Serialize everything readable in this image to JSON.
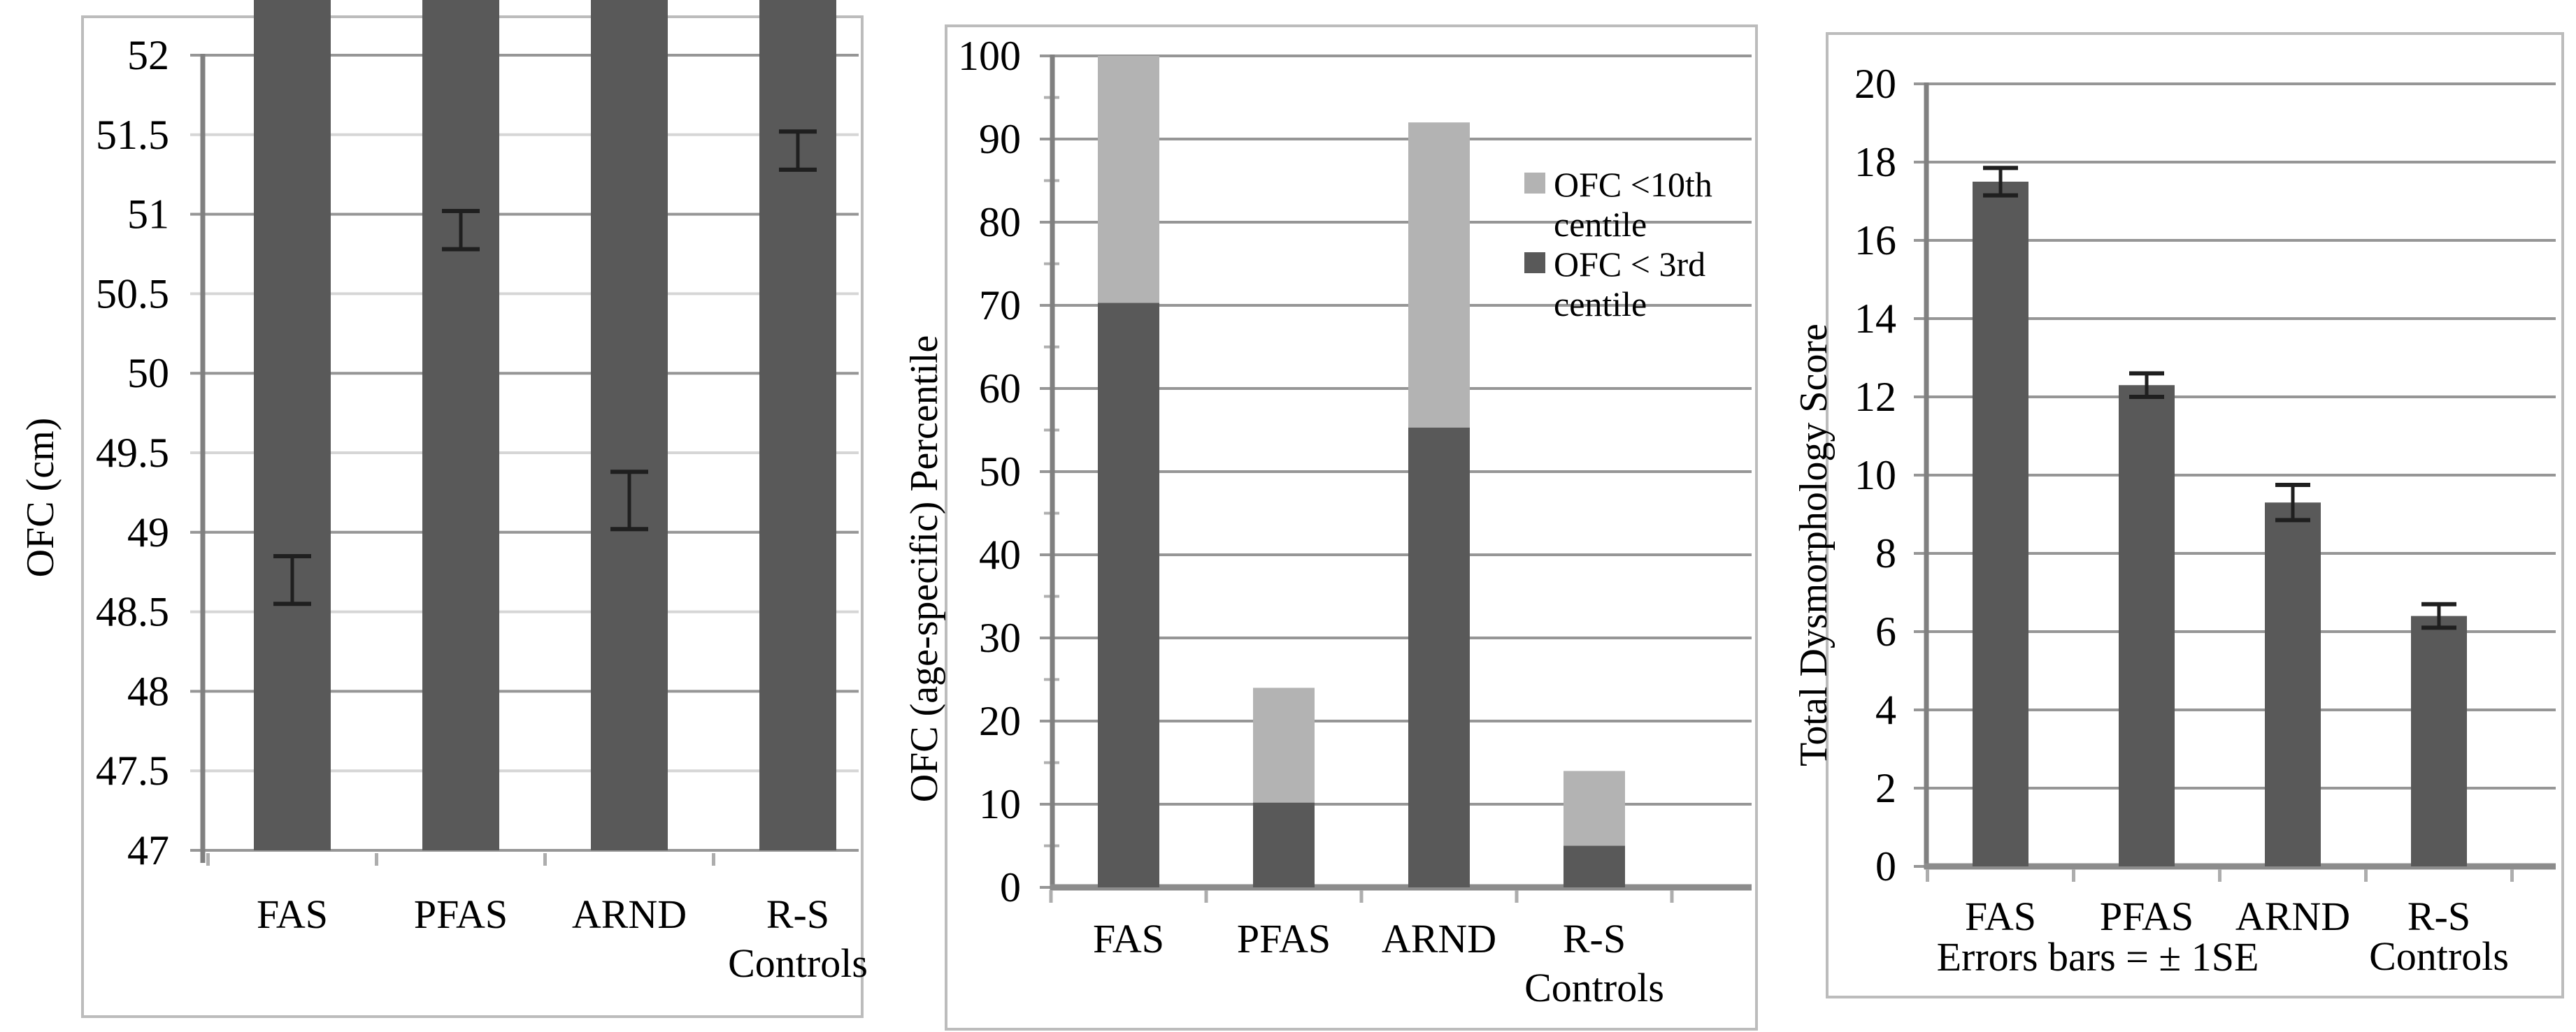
{
  "figure": {
    "background": "#ffffff",
    "text_color": "#000000"
  },
  "colors": {
    "bar_dark": "#595959",
    "bar_light": "#b3b3b3",
    "axis": "#808080",
    "baseline": "#8c8c8c",
    "grid_major": "#969696",
    "grid_minor": "#d6d6d6",
    "panel_border": "#bcbcbc",
    "cat_tick": "#adadad",
    "error_bar": "#1f1f1f"
  },
  "chart_data": [
    {
      "type": "bar",
      "title": "",
      "ylabel": "OFC (cm)",
      "xlabel": "",
      "ylim": [
        47,
        52
      ],
      "grid": true,
      "ytick_values": [
        47,
        47.5,
        48,
        48.5,
        49,
        49.5,
        50,
        50.5,
        51,
        51.5,
        52
      ],
      "ytick_labels": [
        "47",
        "47.5",
        "48",
        "48.5",
        "49",
        "49.5",
        "50",
        "50.5",
        "51",
        "51.5",
        "52"
      ],
      "categories": [
        "FAS",
        "PFAS",
        "ARND",
        "R-S\nControls"
      ],
      "values": [
        48.7,
        50.9,
        49.2,
        51.4
      ],
      "errors": [
        0.15,
        0.12,
        0.18,
        0.12
      ]
    },
    {
      "type": "stacked-bar",
      "title": "",
      "ylabel": "OFC (age-specific) Percentile",
      "xlabel": "",
      "ylim": [
        0,
        100
      ],
      "grid": true,
      "ytick_values": [
        0,
        10,
        20,
        30,
        40,
        50,
        60,
        70,
        80,
        90,
        100
      ],
      "ytick_labels": [
        "0",
        "10",
        "20",
        "30",
        "40",
        "50",
        "60",
        "70",
        "80",
        "90",
        "100"
      ],
      "minor_tick_values": [
        5,
        15,
        25,
        35,
        45,
        55,
        65,
        75,
        85,
        95
      ],
      "categories": [
        "FAS",
        "PFAS",
        "ARND",
        "R-S\nControls"
      ],
      "series": [
        {
          "name": "OFC < 3rd centile",
          "color_key": "bar_dark",
          "values": [
            70.3,
            10.2,
            55.3,
            5.0
          ]
        },
        {
          "name": "OFC <10th centile",
          "color_key": "bar_light",
          "values": [
            29.7,
            13.8,
            36.7,
            9.0
          ]
        }
      ],
      "stack_totals": [
        100,
        24,
        92,
        14
      ],
      "legend": {
        "position": "right-inside",
        "items": [
          {
            "label": "OFC <10th\ncentile",
            "color_key": "bar_light"
          },
          {
            "label": "OFC < 3rd\ncentile",
            "color_key": "bar_dark"
          }
        ]
      }
    },
    {
      "type": "bar",
      "title": "",
      "ylabel": "Total Dysmorphology Score",
      "xlabel": "",
      "ylim": [
        0,
        20
      ],
      "grid": true,
      "ytick_values": [
        0,
        2,
        4,
        6,
        8,
        10,
        12,
        14,
        16,
        18,
        20
      ],
      "ytick_labels": [
        "0",
        "2",
        "4",
        "6",
        "8",
        "10",
        "12",
        "14",
        "16",
        "18",
        "20"
      ],
      "categories": [
        "FAS",
        "PFAS",
        "ARND",
        "R-S\nControls"
      ],
      "values": [
        17.5,
        12.3,
        9.3,
        6.4
      ],
      "errors": [
        0.35,
        0.3,
        0.45,
        0.3
      ],
      "note": "Errors bars = ± 1SE"
    }
  ]
}
